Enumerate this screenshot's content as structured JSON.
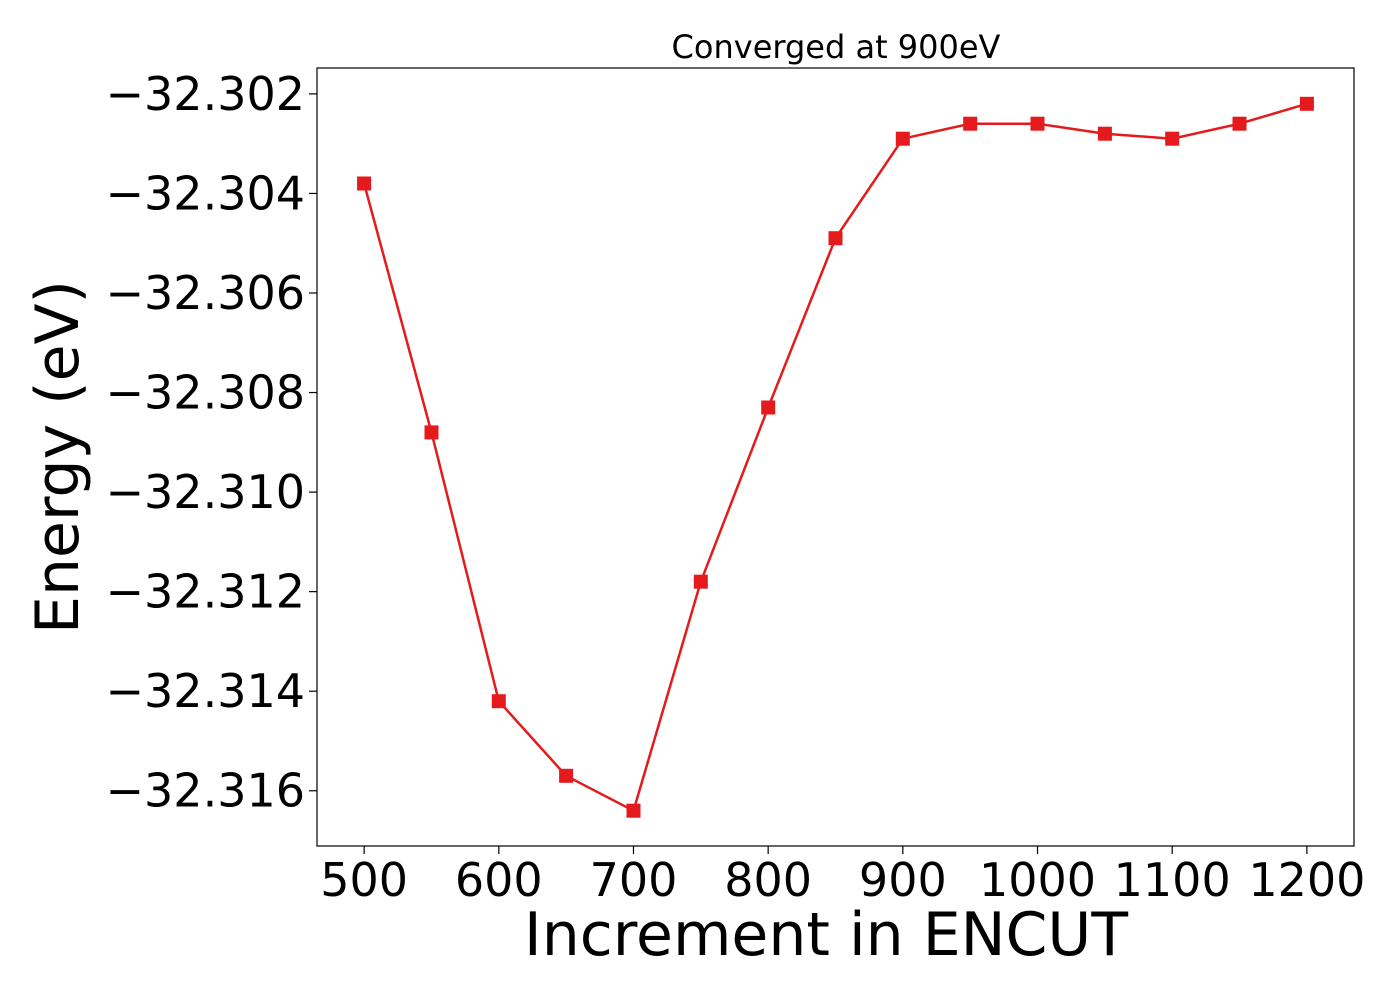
{
  "chart_data": {
    "type": "line",
    "title": "Converged at 900eV",
    "xlabel": "Increment in ENCUT",
    "ylabel": "Energy (eV)",
    "x": [
      500,
      550,
      600,
      650,
      700,
      750,
      800,
      850,
      900,
      950,
      1000,
      1050,
      1100,
      1150,
      1200
    ],
    "series": [
      {
        "values": [
          -32.3038,
          -32.3088,
          -32.3142,
          -32.3157,
          -32.3164,
          -32.3118,
          -32.3083,
          -32.3049,
          -32.3029,
          -32.3026,
          -32.3026,
          -32.3028,
          -32.3029,
          -32.3026,
          -32.3022
        ],
        "color": "#e41a1c",
        "marker": "square"
      }
    ],
    "xlim": [
      465,
      1235
    ],
    "ylim": [
      -32.31711,
      -32.30148
    ],
    "xticks": [
      500,
      600,
      700,
      800,
      900,
      1000,
      1100,
      1200
    ],
    "xtick_labels": [
      "500",
      "600",
      "700",
      "800",
      "900",
      "1000",
      "1100",
      "1200"
    ],
    "yticks": [
      -32.302,
      -32.304,
      -32.306,
      -32.308,
      -32.31,
      -32.312,
      -32.314,
      -32.316
    ],
    "ytick_labels": [
      "−32.302",
      "−32.304",
      "−32.306",
      "−32.308",
      "−32.310",
      "−32.312",
      "−32.314",
      "−32.316"
    ],
    "grid": false,
    "legend": false
  }
}
